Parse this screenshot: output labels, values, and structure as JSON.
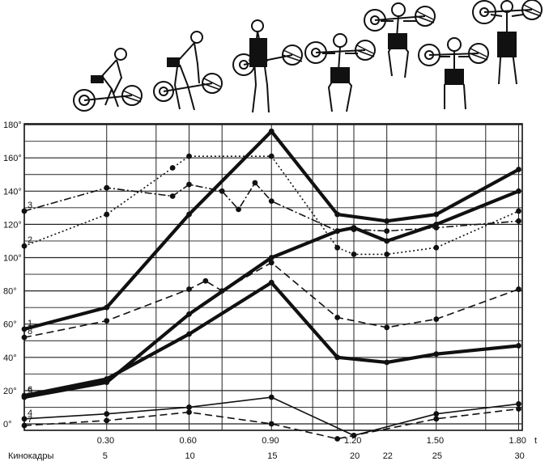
{
  "chart_data": {
    "type": "line",
    "ylim": [
      0,
      180
    ],
    "xlim": [
      0,
      31
    ],
    "grid": true,
    "y_ticks": [
      0,
      20,
      40,
      60,
      80,
      100,
      120,
      140,
      160,
      180
    ],
    "y_tick_labels": [
      "0°",
      "20°",
      "40°",
      "60°",
      "80°",
      "100°",
      "120°",
      "140°",
      "160°",
      "180°"
    ],
    "time_ticks": [
      {
        "x": 5,
        "label": "0.30"
      },
      {
        "x": 10,
        "label": "0.60"
      },
      {
        "x": 15,
        "label": "0.90"
      },
      {
        "x": 20,
        "label": "1.20"
      },
      {
        "x": 25,
        "label": "1.50"
      },
      {
        "x": 30,
        "label": "1.80"
      }
    ],
    "time_axis_unit": "t",
    "frame_axis_label": "Кинокадры",
    "frame_ticks": [
      {
        "x": 5,
        "label": "5"
      },
      {
        "x": 10,
        "label": "10"
      },
      {
        "x": 15,
        "label": "15"
      },
      {
        "x": 20,
        "label": "20"
      },
      {
        "x": 22,
        "label": "22"
      },
      {
        "x": 25,
        "label": "25"
      },
      {
        "x": 30,
        "label": "30"
      }
    ],
    "series": [
      {
        "name": "1",
        "style": "double",
        "x": [
          0,
          5,
          10,
          15,
          19,
          22,
          25,
          30
        ],
        "y": [
          57,
          70,
          126,
          176,
          126,
          122,
          126,
          153
        ]
      },
      {
        "name": "2",
        "style": "dotted",
        "x": [
          0,
          5,
          9,
          10,
          15,
          19,
          20,
          22,
          25,
          30
        ],
        "y": [
          107,
          126,
          154,
          161,
          161,
          106,
          102,
          102,
          106,
          128
        ]
      },
      {
        "name": "3",
        "style": "dashdot",
        "x": [
          0,
          5,
          9,
          10,
          12,
          13,
          14,
          15,
          19,
          20,
          22,
          25,
          30
        ],
        "y": [
          128,
          142,
          137,
          144,
          140,
          129,
          145,
          134,
          116,
          117,
          116,
          118,
          122
        ]
      },
      {
        "name": "4",
        "style": "solid",
        "x": [
          0,
          5,
          10,
          15,
          20,
          25,
          30
        ],
        "y": [
          3,
          6,
          10,
          16,
          -7,
          6,
          12
        ]
      },
      {
        "name": "5",
        "style": "double",
        "x": [
          0,
          5,
          10,
          15,
          19,
          20,
          22,
          25,
          30
        ],
        "y": [
          16,
          25,
          66,
          100,
          116,
          118,
          110,
          120,
          140
        ]
      },
      {
        "name": "6",
        "style": "double",
        "x": [
          0,
          5,
          10,
          15,
          19,
          22,
          25,
          30
        ],
        "y": [
          17,
          27,
          54,
          85,
          40,
          37,
          42,
          47
        ]
      },
      {
        "name": "7",
        "style": "dashed",
        "x": [
          0,
          5,
          10,
          15,
          19,
          20,
          25,
          30
        ],
        "y": [
          -1,
          2,
          7,
          0,
          -9,
          -7,
          3,
          9
        ]
      },
      {
        "name": "8",
        "style": "dashed",
        "x": [
          0,
          5,
          10,
          11,
          12,
          15,
          19,
          22,
          25,
          30
        ],
        "y": [
          52,
          62,
          81,
          86,
          80,
          97,
          64,
          58,
          63,
          81
        ]
      }
    ]
  }
}
